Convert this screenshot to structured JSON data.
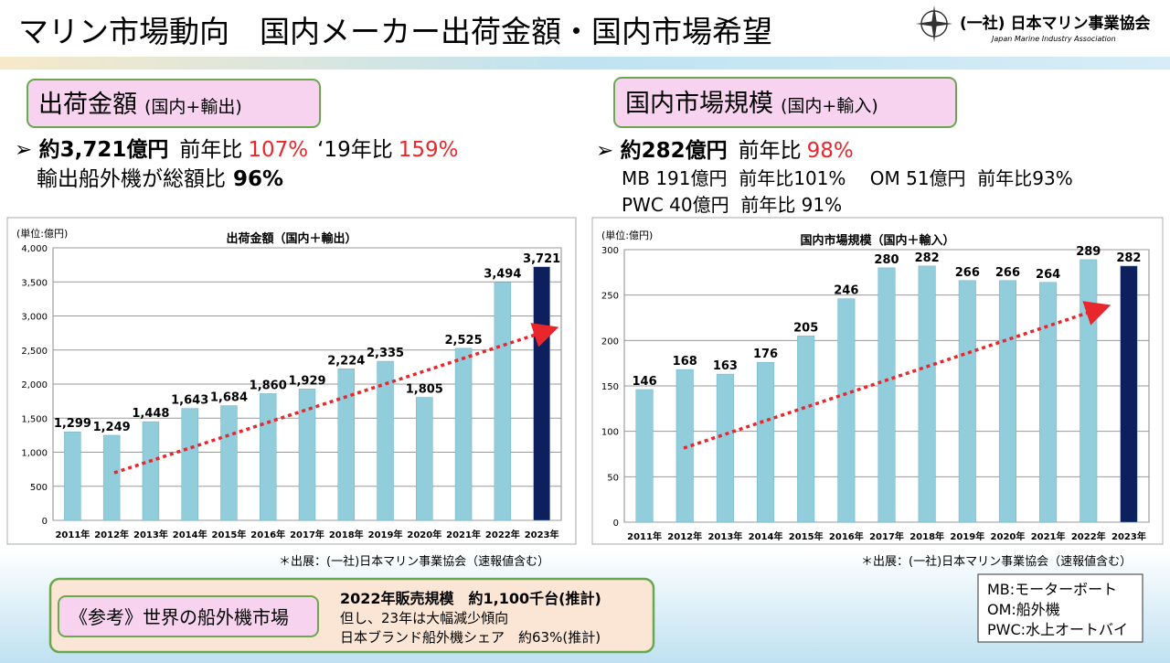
{
  "header": {
    "title": "マリン市場動向　国内メーカー出荷金額・国内市場希望",
    "logo_name": "(一社) 日本マリン事業協会",
    "logo_sub": "Japan Marine Industry Association"
  },
  "left_panel": {
    "heading": "出荷金額",
    "heading_note": "(国内+輸出)",
    "amount": "約3,721億円",
    "yoy_label": "前年比",
    "yoy": "107%",
    "vs19_label": "‘19年比",
    "vs19": "159%",
    "line2": "輸出船外機が総額比",
    "line2_value": "96%",
    "source": "＊出展：(一社)日本マリン事業協会（速報値含む）"
  },
  "right_panel": {
    "heading": "国内市場規模",
    "heading_note": "(国内+輸入)",
    "amount": "約282億円",
    "yoy_label": "前年比",
    "yoy": "98%",
    "line2": "MB 191億円  前年比101%　 OM 51億円  前年比93%",
    "line3": "PWC 40億円  前年比 91%",
    "source": "＊出展：(一社)日本マリン事業協会（速報値含む）"
  },
  "reference": {
    "label": "《参考》世界の船外機市場",
    "line1": "2022年販売規模　約1,100千台(推計)",
    "line2": "但し、23年は大幅減少傾向",
    "line3": "日本ブランド船外機シェア　約63%(推計)"
  },
  "legend_box": [
    "MB:モーターボート",
    "OM:船外機",
    "PWC:水上オートバイ"
  ],
  "chart_data": [
    {
      "type": "bar",
      "title": "出荷金額（国内＋輸出）",
      "unit_label": "(単位:億円)",
      "categories": [
        "2011年",
        "2012年",
        "2013年",
        "2014年",
        "2015年",
        "2016年",
        "2017年",
        "2018年",
        "2019年",
        "2020年",
        "2021年",
        "2022年",
        "2023年"
      ],
      "values": [
        1299,
        1249,
        1448,
        1643,
        1684,
        1860,
        1929,
        2224,
        2335,
        1805,
        2525,
        3494,
        3721
      ],
      "value_labels": [
        "1,299",
        "1,249",
        "1,448",
        "1,643",
        "1,684",
        "1,860",
        "1,929",
        "2,224",
        "2,335",
        "1,805",
        "2,525",
        "3,494",
        "3,721"
      ],
      "colors": [
        "#92cddc",
        "#92cddc",
        "#92cddc",
        "#92cddc",
        "#92cddc",
        "#92cddc",
        "#92cddc",
        "#92cddc",
        "#92cddc",
        "#92cddc",
        "#92cddc",
        "#92cddc",
        "#0d1f5c"
      ],
      "ylim": [
        0,
        4000
      ],
      "yticks": [
        0,
        500,
        {
          "value": 1000,
          "label": "1,000"
        },
        {
          "value": 1500,
          "label": "1,500"
        },
        {
          "value": 2000,
          "label": "2,000"
        },
        {
          "value": 2500,
          "label": "2,500"
        },
        {
          "value": 3000,
          "label": "3,000"
        },
        {
          "value": 3500,
          "label": "3,500"
        },
        {
          "value": 4000,
          "label": "4,000"
        }
      ],
      "grid": true
    },
    {
      "type": "bar",
      "title": "国内市場規模（国内＋輸入）",
      "unit_label": "(単位:億円)",
      "categories": [
        "2011年",
        "2012年",
        "2013年",
        "2014年",
        "2015年",
        "2016年",
        "2017年",
        "2018年",
        "2019年",
        "2020年",
        "2021年",
        "2022年",
        "2023年"
      ],
      "values": [
        146,
        168,
        163,
        176,
        205,
        246,
        280,
        282,
        266,
        266,
        264,
        289,
        282
      ],
      "colors": [
        "#92cddc",
        "#92cddc",
        "#92cddc",
        "#92cddc",
        "#92cddc",
        "#92cddc",
        "#92cddc",
        "#92cddc",
        "#92cddc",
        "#92cddc",
        "#92cddc",
        "#92cddc",
        "#0d1f5c"
      ],
      "ylim": [
        0,
        300
      ],
      "yticks": [
        0,
        50,
        100,
        150,
        200,
        250,
        300
      ],
      "grid": true
    }
  ]
}
